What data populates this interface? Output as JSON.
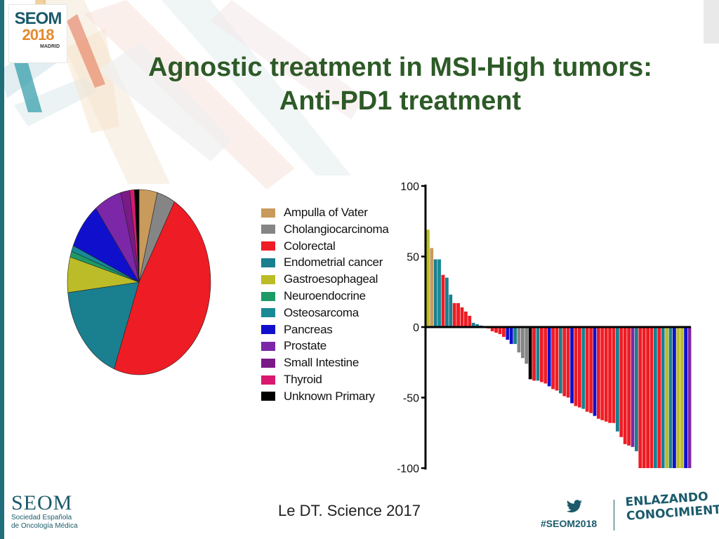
{
  "slide": {
    "title_line1": "Agnostic treatment in MSI-High tumors:",
    "title_line2": "Anti-PD1 treatment",
    "citation": "Le DT.  Science 2017"
  },
  "branding": {
    "logo_top": "SEOM",
    "logo_year": "2018",
    "logo_city": "MADRID",
    "footer_logo_word": "SEOM",
    "footer_logo_sub1": "Sociedad Española",
    "footer_logo_sub2": "de Oncología Médica",
    "hashtag": "#SEOM2018",
    "slogan_line1": "ENLAZANDO",
    "slogan_line2": "CONOCIMIENTO",
    "twitter_icon": "twitter-bird-icon"
  },
  "colors": {
    "title": "#2d5a27",
    "brand_teal": "#1a5a6b",
    "brand_orange": "#e58a2e"
  },
  "chart_data": [
    {
      "type": "pie",
      "categories": [
        "Ampulla of Vater",
        "Cholangiocarcinoma",
        "Colorectal",
        "Endometrial cancer",
        "Gastroesophageal",
        "Neuroendocrine",
        "Osteosarcoma",
        "Pancreas",
        "Prostate",
        "Small Intestine",
        "Thyroid",
        "Unknown Primary"
      ],
      "values": [
        4,
        4,
        46,
        17,
        6,
        1,
        1,
        8,
        6,
        2,
        1,
        1
      ],
      "colors": [
        "#c89a5c",
        "#858585",
        "#ee1c24",
        "#1a7f8f",
        "#bcbc28",
        "#1d9a66",
        "#178a96",
        "#1010cc",
        "#7b27a8",
        "#7a1a86",
        "#d8196f",
        "#000000"
      ]
    },
    {
      "type": "bar",
      "legend": [
        "Ampulla of Vater",
        "Cholangiocarcinoma",
        "Colorectal",
        "Endometrial cancer",
        "Gastroesophageal",
        "Neuroendocrine",
        "Osteosarcoma",
        "Pancreas",
        "Prostate",
        "Small Intestine",
        "Thyroid",
        "Unknown Primary"
      ],
      "legend_colors": [
        "#c89a5c",
        "#858585",
        "#ee1c24",
        "#1a7f8f",
        "#bcbc28",
        "#1d9a66",
        "#178a96",
        "#1010cc",
        "#7b27a8",
        "#7a1a86",
        "#d8196f",
        "#000000"
      ],
      "yticks": [
        "100",
        "50",
        "0",
        "-50",
        "-100"
      ],
      "ylim": [
        -100,
        100
      ],
      "values": [
        69,
        56,
        48,
        48,
        37,
        35,
        23,
        17,
        17,
        14,
        11,
        8,
        3,
        2,
        1,
        0,
        -1,
        -3,
        -4,
        -5,
        -7,
        -9,
        -12,
        -12,
        -18,
        -22,
        -26,
        -37,
        -38,
        -38,
        -39,
        -40,
        -42,
        -44,
        -45,
        -47,
        -49,
        -50,
        -54,
        -56,
        -57,
        -58,
        -60,
        -61,
        -63,
        -65,
        -66,
        -67,
        -68,
        -68,
        -74,
        -78,
        -83,
        -84,
        -85,
        -88,
        -100,
        -100,
        -100,
        -100,
        -100,
        -100,
        -100,
        -100,
        -100,
        -100,
        -100,
        -100,
        -100,
        -100
      ],
      "bar_colors": [
        "#bcbc28",
        "#c89a5c",
        "#1a7f8f",
        "#178a96",
        "#ee1c24",
        "#1a7f8f",
        "#1a7f8f",
        "#ee1c24",
        "#ee1c24",
        "#ee1c24",
        "#ee1c24",
        "#ee1c24",
        "#1a7f8f",
        "#1a7f8f",
        "#1010cc",
        "#bcbc28",
        "#ee1c24",
        "#ee1c24",
        "#ee1c24",
        "#ee1c24",
        "#ee1c24",
        "#1010cc",
        "#1010cc",
        "#1a7f8f",
        "#858585",
        "#858585",
        "#858585",
        "#000000",
        "#ee1c24",
        "#1a7f8f",
        "#ee1c24",
        "#ee1c24",
        "#1010cc",
        "#ee1c24",
        "#ee1c24",
        "#1a7f8f",
        "#ee1c24",
        "#ee1c24",
        "#1010cc",
        "#ee1c24",
        "#ee1c24",
        "#1a7f8f",
        "#ee1c24",
        "#ee1c24",
        "#1010cc",
        "#ee1c24",
        "#ee1c24",
        "#ee1c24",
        "#ee1c24",
        "#ee1c24",
        "#1a7f8f",
        "#ee1c24",
        "#ee1c24",
        "#ee1c24",
        "#7b27a8",
        "#1a7f8f",
        "#ee1c24",
        "#ee1c24",
        "#ee1c24",
        "#ee1c24",
        "#1a7f8f",
        "#ee1c24",
        "#1a7f8f",
        "#bcbc28",
        "#1a7f8f",
        "#1010cc",
        "#bcbc28",
        "#bcbc28",
        "#1010cc",
        "#7b27a8"
      ]
    }
  ]
}
